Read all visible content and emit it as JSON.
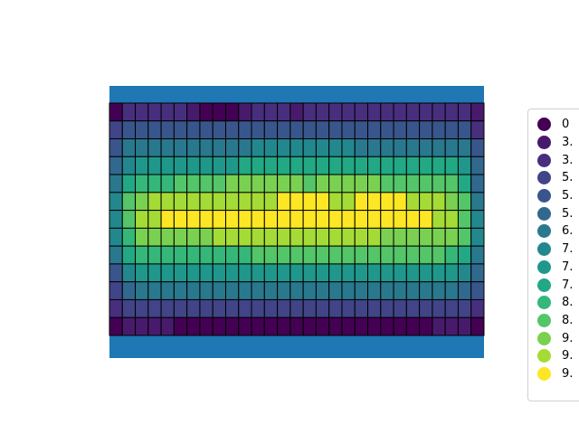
{
  "chart_data": {
    "type": "heatmap",
    "title": "",
    "xlabel": "",
    "ylabel": "",
    "axes_visible": false,
    "grid": false,
    "background_color": "#1f77b4",
    "cell_edge_color": "#000000",
    "legend": {
      "placement": "right",
      "entries": [
        {
          "label": "0",
          "color": "#440154"
        },
        {
          "label": "3.",
          "color": "#481a6c"
        },
        {
          "label": "3.",
          "color": "#472f7d"
        },
        {
          "label": "5.",
          "color": "#414487"
        },
        {
          "label": "5.",
          "color": "#39568c"
        },
        {
          "label": "5.",
          "color": "#31688e"
        },
        {
          "label": "6.",
          "color": "#2a788e"
        },
        {
          "label": "7.",
          "color": "#23888e"
        },
        {
          "label": "7.",
          "color": "#1f988b"
        },
        {
          "label": "7.",
          "color": "#22a884"
        },
        {
          "label": "8.",
          "color": "#35b779"
        },
        {
          "label": "8.",
          "color": "#54c568"
        },
        {
          "label": "9.",
          "color": "#7ad151"
        },
        {
          "label": "9.",
          "color": "#a5db36"
        },
        {
          "label": "9.",
          "color": "#fde725"
        }
      ]
    },
    "n_rows": 13,
    "n_cols": 29,
    "matrix": [
      [
        0,
        2,
        2,
        2,
        2,
        2,
        1,
        0,
        0,
        0,
        1,
        2,
        2,
        2,
        1,
        2,
        2,
        2,
        2,
        2,
        2,
        2,
        2,
        2,
        2,
        2,
        2,
        2,
        1
      ],
      [
        3,
        4,
        4,
        4,
        4,
        4,
        4,
        4,
        4,
        4,
        4,
        4,
        4,
        4,
        4,
        4,
        4,
        4,
        4,
        4,
        4,
        4,
        4,
        4,
        4,
        4,
        4,
        4,
        2
      ],
      [
        4,
        6,
        6,
        6,
        6,
        6,
        6,
        6,
        6,
        6,
        6,
        7,
        7,
        7,
        7,
        7,
        7,
        7,
        7,
        6,
        6,
        6,
        6,
        6,
        6,
        6,
        6,
        6,
        4
      ],
      [
        5,
        7,
        8,
        8,
        8,
        8,
        8,
        8,
        8,
        8,
        9,
        9,
        9,
        9,
        9,
        9,
        9,
        9,
        9,
        9,
        9,
        9,
        9,
        9,
        9,
        9,
        9,
        8,
        5
      ],
      [
        6,
        9,
        10,
        10,
        10,
        11,
        11,
        11,
        11,
        12,
        12,
        12,
        12,
        12,
        12,
        11,
        12,
        12,
        12,
        12,
        12,
        11,
        11,
        11,
        11,
        11,
        11,
        9,
        5
      ],
      [
        7,
        11,
        12,
        13,
        13,
        13,
        13,
        13,
        13,
        13,
        13,
        13,
        13,
        14,
        14,
        14,
        14,
        13,
        13,
        14,
        14,
        14,
        14,
        13,
        13,
        13,
        12,
        11,
        6
      ],
      [
        7,
        11,
        13,
        13,
        14,
        14,
        14,
        14,
        14,
        14,
        14,
        14,
        14,
        14,
        14,
        14,
        14,
        14,
        14,
        14,
        14,
        14,
        14,
        14,
        14,
        13,
        13,
        11,
        7
      ],
      [
        7,
        10,
        12,
        12,
        12,
        12,
        12,
        12,
        13,
        13,
        13,
        13,
        13,
        13,
        13,
        13,
        13,
        13,
        13,
        13,
        13,
        12,
        12,
        12,
        12,
        12,
        12,
        11,
        7
      ],
      [
        6,
        9,
        10,
        10,
        10,
        10,
        10,
        10,
        10,
        10,
        10,
        11,
        11,
        11,
        11,
        11,
        11,
        11,
        11,
        11,
        11,
        11,
        11,
        11,
        11,
        11,
        10,
        9,
        6
      ],
      [
        4,
        7,
        8,
        8,
        8,
        8,
        8,
        8,
        8,
        8,
        8,
        8,
        8,
        8,
        8,
        8,
        8,
        8,
        8,
        8,
        8,
        8,
        8,
        8,
        8,
        8,
        8,
        7,
        5
      ],
      [
        3,
        5,
        6,
        6,
        6,
        6,
        6,
        6,
        6,
        6,
        6,
        6,
        6,
        6,
        6,
        6,
        6,
        6,
        6,
        6,
        6,
        6,
        6,
        6,
        6,
        6,
        6,
        5,
        4
      ],
      [
        2,
        3,
        3,
        3,
        3,
        3,
        3,
        3,
        3,
        3,
        3,
        3,
        3,
        3,
        3,
        3,
        3,
        3,
        3,
        3,
        3,
        3,
        3,
        3,
        3,
        3,
        3,
        3,
        2
      ],
      [
        0,
        1,
        1,
        1,
        1,
        0,
        0,
        0,
        0,
        0,
        0,
        0,
        0,
        0,
        0,
        0,
        0,
        0,
        0,
        0,
        0,
        0,
        0,
        0,
        0,
        1,
        1,
        1,
        0
      ]
    ]
  }
}
